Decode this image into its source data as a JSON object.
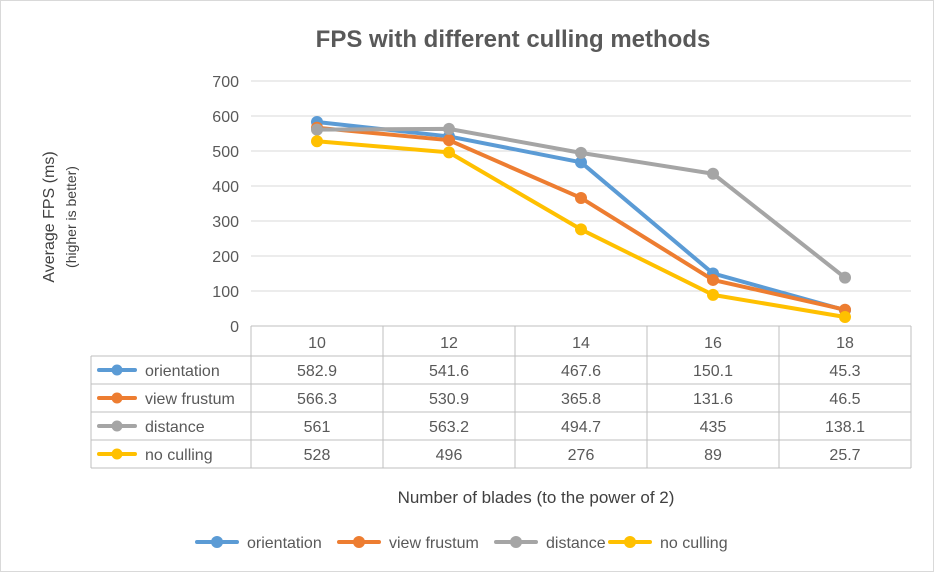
{
  "chart_data": {
    "type": "line",
    "title": "FPS with different culling methods",
    "xlabel": "Number of blades (to the power of 2)",
    "ylabel": "Average FPS (ms)",
    "ylabel2": "(higher is better)",
    "categories": [
      "10",
      "12",
      "14",
      "16",
      "18"
    ],
    "ylim": [
      0,
      700
    ],
    "yticks": [
      "0",
      "100",
      "200",
      "300",
      "400",
      "500",
      "600",
      "700"
    ],
    "grid": true,
    "legend": "bottom",
    "data_table": true,
    "series": [
      {
        "name": "orientation",
        "color": "#5b9bd5",
        "values": [
          582.9,
          541.6,
          467.6,
          150.1,
          45.3
        ]
      },
      {
        "name": "view frustum",
        "color": "#ed7d31",
        "values": [
          566.3,
          530.9,
          365.8,
          131.6,
          46.5
        ]
      },
      {
        "name": "distance",
        "color": "#a5a5a5",
        "values": [
          561,
          563.2,
          494.7,
          435,
          138.1
        ]
      },
      {
        "name": "no culling",
        "color": "#ffc000",
        "values": [
          528,
          496,
          276,
          89,
          25.7
        ]
      }
    ],
    "table_cells": [
      [
        "582.9",
        "541.6",
        "467.6",
        "150.1",
        "45.3"
      ],
      [
        "566.3",
        "530.9",
        "365.8",
        "131.6",
        "46.5"
      ],
      [
        "561",
        "563.2",
        "494.7",
        "435",
        "138.1"
      ],
      [
        "528",
        "496",
        "276",
        "89",
        "25.7"
      ]
    ]
  }
}
